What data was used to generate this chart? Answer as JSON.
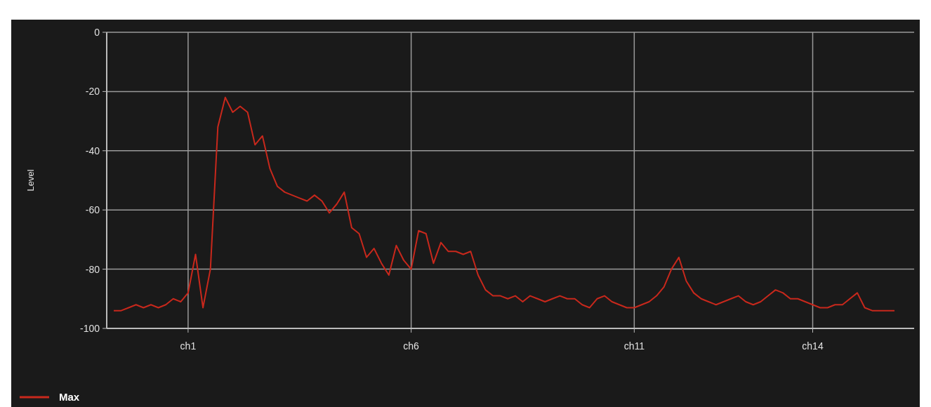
{
  "chart_data": {
    "type": "line",
    "ylabel": "Level",
    "legend": "bottom left",
    "grid": true,
    "marker": "none",
    "line_style": "solid",
    "ylim": [
      -100,
      0
    ],
    "yticks": [
      0,
      -20,
      -40,
      -60,
      -80,
      -100
    ],
    "categories": [
      null,
      null,
      null,
      null,
      null,
      null,
      null,
      null,
      null,
      null,
      "ch1",
      null,
      null,
      null,
      null,
      null,
      null,
      null,
      null,
      null,
      null,
      null,
      null,
      null,
      null,
      null,
      null,
      null,
      null,
      null,
      null,
      null,
      null,
      null,
      null,
      null,
      null,
      null,
      null,
      null,
      "ch6",
      null,
      null,
      null,
      null,
      null,
      null,
      null,
      null,
      null,
      null,
      null,
      null,
      null,
      null,
      null,
      null,
      null,
      null,
      null,
      null,
      null,
      null,
      null,
      null,
      null,
      null,
      null,
      null,
      null,
      "ch11",
      null,
      null,
      null,
      null,
      null,
      null,
      null,
      null,
      null,
      null,
      null,
      null,
      null,
      null,
      null,
      null,
      null,
      null,
      null,
      null,
      null,
      null,
      null,
      "ch14",
      null,
      null,
      null,
      null,
      null,
      null,
      null,
      null,
      null,
      null,
      null
    ],
    "series": [
      {
        "name": "Max",
        "color": "#c8281c",
        "values": [
          -94,
          -94,
          -93,
          -92,
          -93,
          -92,
          -93,
          -92,
          -90,
          -91,
          -88,
          -75,
          -93,
          -80,
          -32,
          -22,
          -27,
          -25,
          -27,
          -38,
          -35,
          -46,
          -52,
          -54,
          -55,
          -56,
          -57,
          -55,
          -57,
          -61,
          -58,
          -54,
          -66,
          -68,
          -76,
          -73,
          -78,
          -82,
          -72,
          -77,
          -80,
          -67,
          -68,
          -78,
          -71,
          -74,
          -74,
          -75,
          -74,
          -82,
          -87,
          -89,
          -89,
          -90,
          -89,
          -91,
          -89,
          -90,
          -91,
          -90,
          -89,
          -90,
          -90,
          -92,
          -93,
          -90,
          -89,
          -91,
          -92,
          -93,
          -93,
          -92,
          -91,
          -89,
          -86,
          -80,
          -76,
          -84,
          -88,
          -90,
          -91,
          -92,
          -91,
          -90,
          -89,
          -91,
          -92,
          -91,
          -89,
          -87,
          -88,
          -90,
          -90,
          -91,
          -92,
          -93,
          -93,
          -92,
          -92,
          -90,
          -88,
          -93,
          -94,
          -94,
          -94,
          -94
        ]
      }
    ]
  }
}
